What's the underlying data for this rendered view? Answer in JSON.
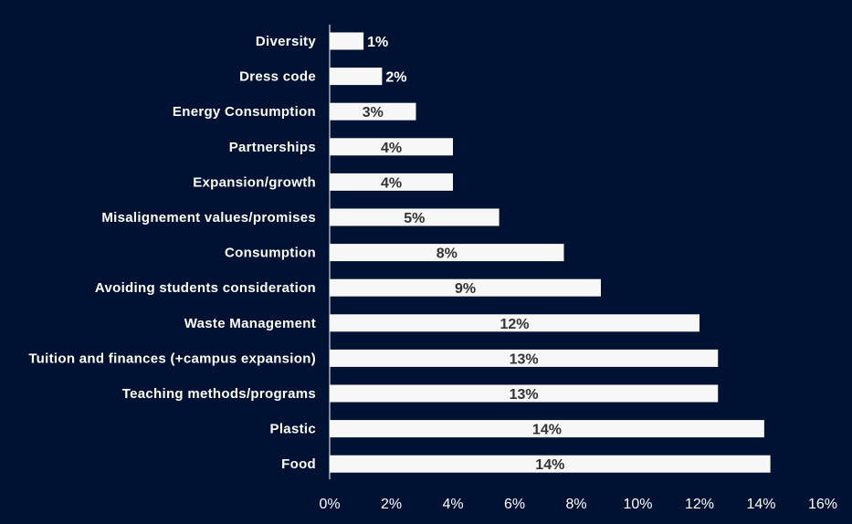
{
  "chart_data": {
    "type": "bar",
    "orientation": "horizontal",
    "title": "",
    "xlabel": "",
    "ylabel": "",
    "xlim": [
      0,
      16
    ],
    "ticks": [
      "0%",
      "2%",
      "4%",
      "6%",
      "8%",
      "10%",
      "12%",
      "14%",
      "16%"
    ],
    "grid": false,
    "colors": {
      "background": "#001233",
      "bar": "#f7f7f7",
      "category_text": "#ffffff",
      "value_text": "#333333"
    },
    "categories": [
      "Diversity",
      "Dress code",
      "Energy Consumption",
      "Partnerships",
      "Expansion/growth",
      "Misalignement values/promises",
      "Consumption",
      "Avoiding students consideration",
      "Waste Management",
      "Tuition and finances (+campus expansion)",
      "Teaching methods/programs",
      "Plastic",
      "Food"
    ],
    "values": [
      1.1,
      1.7,
      2.8,
      4.0,
      4.0,
      5.5,
      7.6,
      8.8,
      12.0,
      12.6,
      12.6,
      14.1,
      14.3
    ],
    "value_labels": [
      "1%",
      "2%",
      "3%",
      "4%",
      "4%",
      "5%",
      "8%",
      "9%",
      "12%",
      "13%",
      "13%",
      "14%",
      "14%"
    ]
  }
}
